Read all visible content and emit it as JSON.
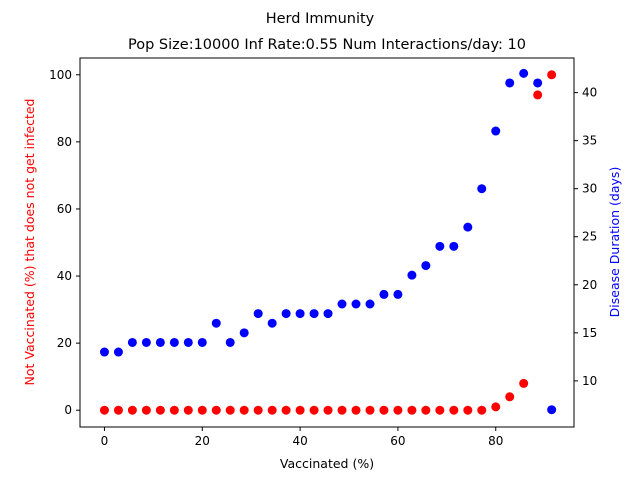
{
  "chart_data": {
    "type": "scatter",
    "suptitle": "Herd Immunity",
    "title": "Pop Size:10000 Inf Rate:0.55 Num Interactions/day: 10",
    "xlabel": "Vaccinated (%)",
    "ylabel_left": "Not Vaccinated (%) that does not get infected",
    "ylabel_right": "Disease Duration (days)",
    "xlim": [
      -5,
      96
    ],
    "ylim_left": [
      -5,
      105
    ],
    "ylim_right": [
      5.2,
      43.6
    ],
    "x_ticks": [
      0,
      20,
      40,
      60,
      80
    ],
    "y_left_ticks": [
      0,
      20,
      40,
      60,
      80,
      100
    ],
    "y_right_ticks": [
      10,
      15,
      20,
      25,
      30,
      35,
      40
    ],
    "grid": false,
    "x": [
      0,
      2.86,
      5.71,
      8.57,
      11.43,
      14.29,
      17.14,
      20,
      22.86,
      25.71,
      28.57,
      31.43,
      34.29,
      37.14,
      40,
      42.86,
      45.71,
      48.57,
      51.43,
      54.29,
      57.14,
      60,
      62.86,
      65.71,
      68.57,
      71.43,
      74.29,
      77.14,
      80,
      82.86,
      85.71,
      88.57,
      91.43
    ],
    "series": [
      {
        "axis": "left",
        "color": "#ff0000",
        "values": [
          0,
          0,
          0,
          0,
          0,
          0,
          0,
          0,
          0,
          0,
          0,
          0,
          0,
          0,
          0,
          0,
          0,
          0,
          0,
          0,
          0,
          0,
          0,
          0,
          0,
          0,
          0,
          0,
          1,
          4,
          8,
          94,
          100
        ]
      },
      {
        "axis": "right",
        "color": "#0000ff",
        "values": [
          13,
          13,
          14,
          14,
          14,
          14,
          14,
          14,
          16,
          14,
          15,
          17,
          16,
          17,
          17,
          17,
          17,
          18,
          18,
          18,
          19,
          19,
          21,
          22,
          24,
          24,
          26,
          30,
          36,
          41,
          42,
          41,
          7
        ]
      }
    ]
  }
}
